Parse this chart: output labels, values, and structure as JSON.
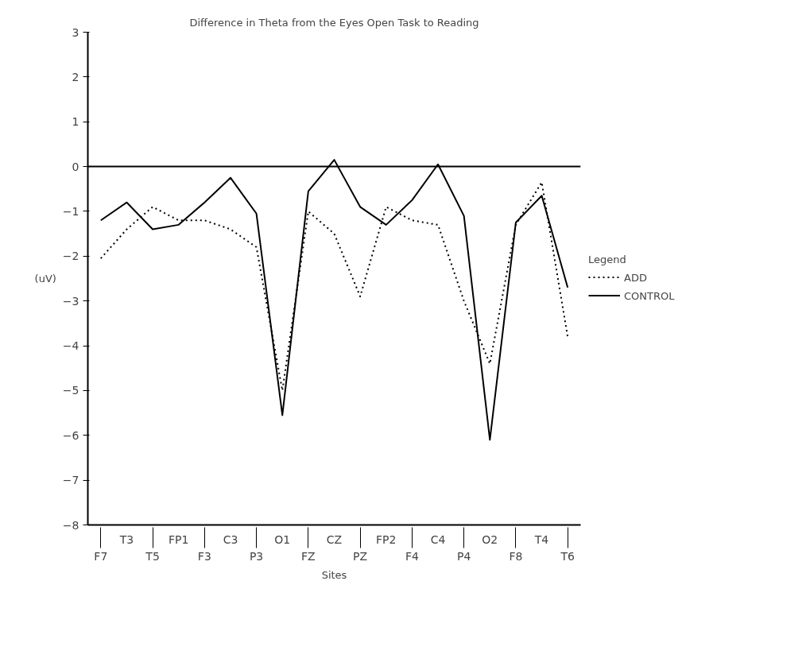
{
  "chart_data": {
    "type": "line",
    "title": "Difference in Theta from the Eyes Open Task to Reading",
    "xlabel": "Sites",
    "ylabel": "(uV)",
    "legend_title": "Legend",
    "categories": [
      "F7",
      "T3",
      "T5",
      "FP1",
      "F3",
      "C3",
      "P3",
      "O1",
      "FZ",
      "CZ",
      "PZ",
      "FP2",
      "F4",
      "C4",
      "P4",
      "O2",
      "F8",
      "T4",
      "T6"
    ],
    "series": [
      {
        "name": "ADD",
        "color": "#000000",
        "line_style": "dotted",
        "values": [
          -2.05,
          -1.4,
          -0.9,
          -1.2,
          -1.2,
          -1.4,
          -1.8,
          -5.0,
          -1.0,
          -1.5,
          -2.9,
          -0.9,
          -1.2,
          -1.3,
          -3.0,
          -4.4,
          -1.3,
          -0.35,
          -3.8
        ]
      },
      {
        "name": "CONTROL",
        "color": "#000000",
        "line_style": "solid",
        "values": [
          -1.2,
          -0.8,
          -1.4,
          -1.3,
          -0.8,
          -0.25,
          -1.05,
          -5.55,
          -0.55,
          0.15,
          -0.9,
          -1.3,
          -0.75,
          0.05,
          -1.1,
          -6.1,
          -1.25,
          -0.65,
          -2.7
        ]
      }
    ],
    "ylim": [
      -8,
      3
    ],
    "yticks": [
      -8,
      -7,
      -6,
      -5,
      -4,
      -3,
      -2,
      -1,
      0,
      1,
      2,
      3
    ],
    "grid": false,
    "legend": "right",
    "marker": "none",
    "ref_lines": [
      {
        "axis": "y",
        "value": 0,
        "label": null,
        "color": "#000000",
        "line_style": "solid"
      }
    ]
  }
}
